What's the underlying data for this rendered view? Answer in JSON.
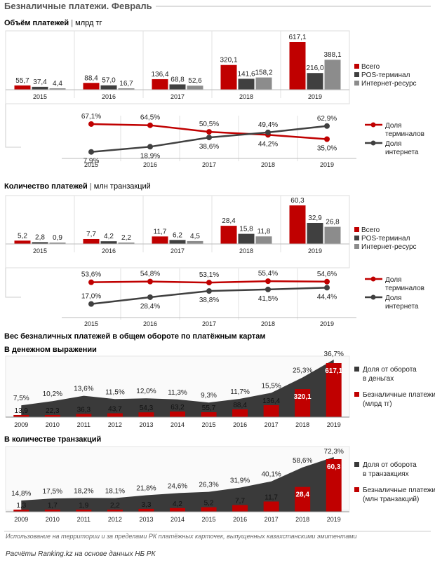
{
  "header": {
    "title": "Безналичные платежи. Февраль"
  },
  "colors": {
    "red": "#c00000",
    "darkgray": "#404040",
    "gray": "#8c8c8c",
    "area": "#3a3a3a",
    "line": "#b7b7b7"
  },
  "charts": {
    "volume": {
      "title_bold": "Объём платежей",
      "title_unit": "млрд тг",
      "legend": [
        "Всего",
        "POS-терминал",
        "Интернет-ресурс"
      ],
      "share_legend": [
        "Доля терминалов",
        "Доля интернета"
      ]
    },
    "count": {
      "title_bold": "Количество платежей",
      "title_unit": "млн транзакций",
      "legend": [
        "Всего",
        "POS-терминал",
        "Интернет-ресурс"
      ],
      "share_legend": [
        "Доля терминалов",
        "Доля интернета"
      ]
    },
    "weight": {
      "title": "Вес безналичных платежей в общем обороте по платёжным картам"
    },
    "money": {
      "title": "В денежном выражении",
      "legend": [
        "Доля от оборота в деньгах",
        "Безналичные платежи (млрд тг)"
      ]
    },
    "trans": {
      "title": "В количестве транзакций",
      "legend": [
        "Доля от оборота в транзакциях",
        "Безналичные платежи (млн транзакций)"
      ]
    }
  },
  "footer": {
    "note": "Использование на территории и за пределами РК платёжных карточек, выпущенных казахстанскими эмитентами",
    "source": "Расчёты Ranking.kz на основе данных НБ РК"
  },
  "chart_data": [
    {
      "type": "bar",
      "categories": [
        "2015",
        "2016",
        "2017",
        "2018",
        "2019"
      ],
      "series": [
        {
          "name": "Всего",
          "values": [
            55.7,
            88.4,
            136.4,
            320.1,
            617.1
          ],
          "labels": [
            "55,7",
            "88,4",
            "136,4",
            "320,1",
            "617,1"
          ]
        },
        {
          "name": "POS-терминал",
          "values": [
            37.4,
            57.0,
            68.8,
            141.6,
            216.0
          ],
          "labels": [
            "37,4",
            "57,0",
            "68,8",
            "141,6",
            "216,0"
          ]
        },
        {
          "name": "Интернет-ресурс",
          "values": [
            4.4,
            16.7,
            52.6,
            158.2,
            388.1
          ],
          "labels": [
            "4,4",
            "16,7",
            "52,6",
            "158,2",
            "388,1"
          ]
        }
      ]
    },
    {
      "type": "line",
      "categories": [
        "2015",
        "2016",
        "2017",
        "2018",
        "2019"
      ],
      "series": [
        {
          "name": "Доля терминалов",
          "values": [
            67.1,
            64.5,
            50.5,
            44.2,
            35.0
          ],
          "labels": [
            "67,1%",
            "64,5%",
            "50,5%",
            "44,2%",
            "35,0%"
          ]
        },
        {
          "name": "Доля интернета",
          "values": [
            7.9,
            18.9,
            38.6,
            49.4,
            62.9
          ],
          "labels": [
            "7,9%",
            "18,9%",
            "38,6%",
            "49,4%",
            "62,9%"
          ]
        }
      ]
    },
    {
      "type": "bar",
      "categories": [
        "2015",
        "2016",
        "2017",
        "2018",
        "2019"
      ],
      "series": [
        {
          "name": "Всего",
          "values": [
            5.2,
            7.7,
            11.7,
            28.4,
            60.3
          ],
          "labels": [
            "5,2",
            "7,7",
            "11,7",
            "28,4",
            "60,3"
          ]
        },
        {
          "name": "POS-терминал",
          "values": [
            2.8,
            4.2,
            6.2,
            15.8,
            32.9
          ],
          "labels": [
            "2,8",
            "4,2",
            "6,2",
            "15,8",
            "32,9"
          ]
        },
        {
          "name": "Интернет-ресурс",
          "values": [
            0.9,
            2.2,
            4.5,
            11.8,
            26.8
          ],
          "labels": [
            "0,9",
            "2,2",
            "4,5",
            "11,8",
            "26,8"
          ]
        }
      ]
    },
    {
      "type": "line",
      "categories": [
        "2015",
        "2016",
        "2017",
        "2018",
        "2019"
      ],
      "series": [
        {
          "name": "Доля терминалов",
          "values": [
            53.6,
            54.8,
            53.1,
            55.4,
            54.6
          ],
          "labels": [
            "53,6%",
            "54,8%",
            "53,1%",
            "55,4%",
            "54,6%"
          ]
        },
        {
          "name": "Доля интернета",
          "values": [
            17.0,
            28.4,
            38.8,
            41.5,
            44.4
          ],
          "labels": [
            "17,0%",
            "28,4%",
            "38,8%",
            "41,5%",
            "44,4%"
          ]
        }
      ]
    },
    {
      "type": "bar",
      "categories": [
        "2009",
        "2010",
        "2011",
        "2012",
        "2013",
        "2014",
        "2015",
        "2016",
        "2017",
        "2018",
        "2019"
      ],
      "series": [
        {
          "name": "Безналичные платежи (млрд тг)",
          "values": [
            13.9,
            22.3,
            36.3,
            43.7,
            54.3,
            63.2,
            55.7,
            88.4,
            136.4,
            320.1,
            617.1
          ],
          "labels": [
            "13,9",
            "22,3",
            "36,3",
            "43,7",
            "54,3",
            "63,2",
            "55,7",
            "88,4",
            "136,4",
            "320,1",
            "617,1"
          ]
        },
        {
          "name": "Доля от оборота в деньгах",
          "type": "area",
          "values": [
            7.5,
            10.2,
            13.6,
            11.5,
            12.0,
            11.3,
            9.3,
            11.7,
            15.5,
            25.3,
            36.7
          ],
          "labels": [
            "7,5%",
            "10,2%",
            "13,6%",
            "11,5%",
            "12,0%",
            "11,3%",
            "9,3%",
            "11,7%",
            "15,5%",
            "25,3%",
            "36,7%"
          ]
        }
      ]
    },
    {
      "type": "bar",
      "categories": [
        "2009",
        "2010",
        "2011",
        "2012",
        "2013",
        "2014",
        "2015",
        "2016",
        "2017",
        "2018",
        "2019"
      ],
      "series": [
        {
          "name": "Безналичные платежи (млн транзакций)",
          "values": [
            1.3,
            1.7,
            1.9,
            2.2,
            3.3,
            4.2,
            5.2,
            7.7,
            11.7,
            28.4,
            60.3
          ],
          "labels": [
            "1,3",
            "1,7",
            "1,9",
            "2,2",
            "3,3",
            "4,2",
            "5,2",
            "7,7",
            "11,7",
            "28,4",
            "60,3"
          ]
        },
        {
          "name": "Доля от оборота в транзакциях",
          "type": "area",
          "values": [
            14.8,
            17.5,
            18.2,
            18.1,
            21.8,
            24.6,
            26.3,
            31.9,
            40.1,
            58.6,
            72.3
          ],
          "labels": [
            "14,8%",
            "17,5%",
            "18,2%",
            "18,1%",
            "21,8%",
            "24,6%",
            "26,3%",
            "31,9%",
            "40,1%",
            "58,6%",
            "72,3%"
          ]
        }
      ]
    }
  ]
}
